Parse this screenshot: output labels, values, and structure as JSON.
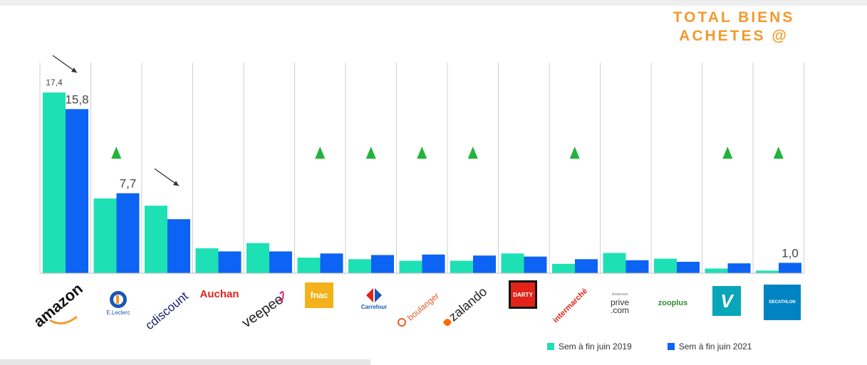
{
  "header": {
    "title_line1": "TOTAL BIENS",
    "title_line2": "ACHETES @"
  },
  "colors": {
    "series_2019": "#1de1b4",
    "series_2021": "#0d63f3",
    "triangle": "#22b33a",
    "title": "#f29a2e"
  },
  "chart_data": {
    "type": "bar",
    "categories": [
      "amazon",
      "E.Leclerc",
      "cdiscount",
      "Auchan",
      "Veepee",
      "fnac",
      "Carrefour",
      "boulanger",
      "zalando",
      "DARTY",
      "intermarché",
      "showroom prive.com",
      "zooplus",
      "vinted",
      "DECATHLON"
    ],
    "series": [
      {
        "name": "Sem à fin juin 2019",
        "values": [
          17.4,
          7.2,
          6.5,
          2.4,
          2.9,
          1.5,
          1.35,
          1.2,
          1.2,
          1.9,
          0.9,
          1.95,
          1.4,
          0.45,
          0.25
        ]
      },
      {
        "name": "Sem à fin juin 2021",
        "values": [
          15.8,
          7.7,
          5.2,
          2.1,
          2.1,
          1.9,
          1.75,
          1.8,
          1.7,
          1.6,
          1.35,
          1.25,
          1.1,
          0.95,
          1.0
        ]
      }
    ],
    "data_labels": [
      {
        "category": "amazon",
        "series": "Sem à fin juin 2019",
        "text": "17,4"
      },
      {
        "category": "amazon",
        "series": "Sem à fin juin 2021",
        "text": "15,8"
      },
      {
        "category": "E.Leclerc",
        "series": "Sem à fin juin 2021",
        "text": "7,7"
      },
      {
        "category": "DECATHLON",
        "series": "Sem à fin juin 2021",
        "text": "1,0"
      }
    ],
    "growth_markers": [
      "E.Leclerc",
      "fnac",
      "Carrefour",
      "boulanger",
      "zalando",
      "intermarché",
      "vinted",
      "DECATHLON"
    ],
    "decline_markers": [
      "amazon",
      "cdiscount"
    ],
    "ylim": [
      0,
      18
    ],
    "grid": "vertical separators",
    "legend_position": "bottom-right"
  },
  "logos": {
    "amazon": "amazon",
    "leclerc": "E.Leclerc",
    "cdiscount": "cdiscount",
    "auchan": "Auchan",
    "veepee": "veepee",
    "fnac": "fnac",
    "carrefour": "Carrefour",
    "boulanger": "boulanger",
    "zalando": "zalando",
    "darty": "DARTY",
    "intermarche": "intermarché",
    "showroom_small": "showroom",
    "showroom_prive": "prive",
    "showroom_com": ".com",
    "zooplus": "zooplus",
    "vinted": "V",
    "decathlon": "DECATHLON"
  }
}
